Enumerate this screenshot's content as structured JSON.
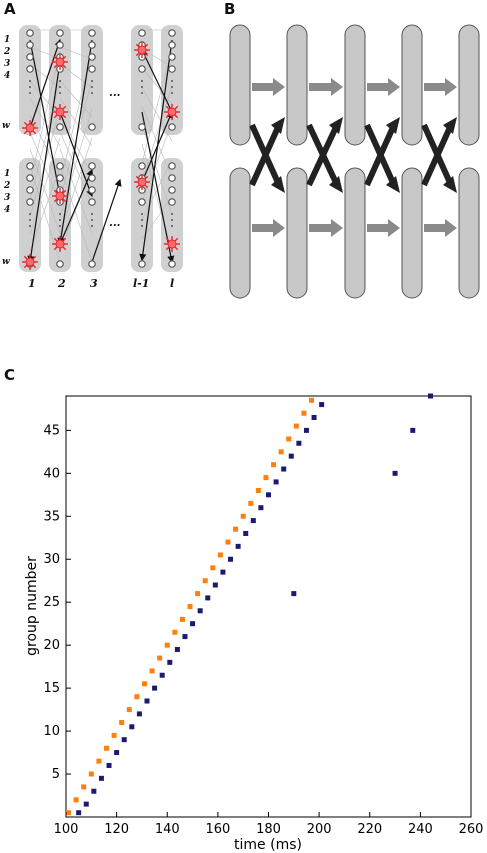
{
  "panels": {
    "a_label": "A",
    "b_label": "B",
    "c_label": "C"
  },
  "panel_a": {
    "row_labels": [
      "1",
      "2",
      "3",
      "4",
      "w"
    ],
    "column_labels": [
      "1",
      "2",
      "3",
      "l-1",
      "l"
    ],
    "ellipsis": "..."
  },
  "chart_data": {
    "type": "scatter",
    "xlabel": "time (ms)",
    "ylabel": "group number",
    "xlim": [
      100,
      260
    ],
    "ylim": [
      0,
      49
    ],
    "xticks": [
      100,
      120,
      140,
      160,
      180,
      200,
      220,
      240,
      260
    ],
    "yticks": [
      5,
      10,
      15,
      20,
      25,
      30,
      35,
      40,
      45
    ],
    "grid": false,
    "series": [
      {
        "color": "#1a1a6e",
        "points": [
          [
            105,
            0.5
          ],
          [
            108,
            1.5
          ],
          [
            111,
            3
          ],
          [
            114,
            4.5
          ],
          [
            117,
            6
          ],
          [
            120,
            7.5
          ],
          [
            123,
            9
          ],
          [
            126,
            10.5
          ],
          [
            129,
            12
          ],
          [
            132,
            13.5
          ],
          [
            135,
            15
          ],
          [
            138,
            16.5
          ],
          [
            141,
            18
          ],
          [
            144,
            19.5
          ],
          [
            147,
            21
          ],
          [
            150,
            22.5
          ],
          [
            153,
            24
          ],
          [
            156,
            25.5
          ],
          [
            159,
            27
          ],
          [
            162,
            28.5
          ],
          [
            165,
            30
          ],
          [
            168,
            31.5
          ],
          [
            171,
            33
          ],
          [
            174,
            34.5
          ],
          [
            177,
            36
          ],
          [
            180,
            37.5
          ],
          [
            183,
            39
          ],
          [
            186,
            40.5
          ],
          [
            189,
            42
          ],
          [
            192,
            43.5
          ],
          [
            195,
            45
          ],
          [
            198,
            46.5
          ],
          [
            201,
            48
          ],
          [
            230,
            40
          ],
          [
            237,
            45
          ],
          [
            244,
            49
          ],
          [
            190,
            26
          ]
        ]
      },
      {
        "color": "#ff7f0e",
        "points": [
          [
            101,
            0.5
          ],
          [
            104,
            2
          ],
          [
            107,
            3.5
          ],
          [
            110,
            5
          ],
          [
            113,
            6.5
          ],
          [
            116,
            8
          ],
          [
            119,
            9.5
          ],
          [
            122,
            11
          ],
          [
            125,
            12.5
          ],
          [
            128,
            14
          ],
          [
            131,
            15.5
          ],
          [
            134,
            17
          ],
          [
            137,
            18.5
          ],
          [
            140,
            20
          ],
          [
            143,
            21.5
          ],
          [
            146,
            23
          ],
          [
            149,
            24.5
          ],
          [
            152,
            26
          ],
          [
            155,
            27.5
          ],
          [
            158,
            29
          ],
          [
            161,
            30.5
          ],
          [
            164,
            32
          ],
          [
            167,
            33.5
          ],
          [
            170,
            35
          ],
          [
            173,
            36.5
          ],
          [
            176,
            38
          ],
          [
            179,
            39.5
          ],
          [
            182,
            41
          ],
          [
            185,
            42.5
          ],
          [
            188,
            44
          ],
          [
            191,
            45.5
          ],
          [
            194,
            47
          ],
          [
            197,
            48.5
          ]
        ]
      }
    ]
  }
}
